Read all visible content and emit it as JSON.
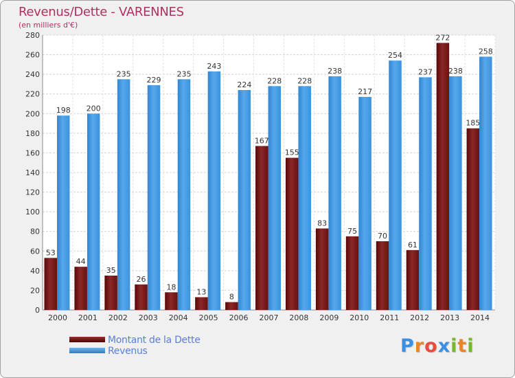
{
  "chart_data": {
    "type": "bar",
    "title": "Revenus/Dette - VARENNES",
    "subtitle": "(en milliers d'€)",
    "xlabel": "",
    "ylabel": "",
    "ylim": [
      0,
      280
    ],
    "yticks": [
      "0",
      "20",
      "40",
      "60",
      "80",
      "100",
      "120",
      "140",
      "160",
      "180",
      "200",
      "220",
      "240",
      "260",
      "280"
    ],
    "grid": true,
    "legend_position": "bottom-left",
    "categories": [
      "2000",
      "2001",
      "2002",
      "2003",
      "2004",
      "2005",
      "2006",
      "2007",
      "2008",
      "2009",
      "2010",
      "2011",
      "2012",
      "2013",
      "2014"
    ],
    "series": [
      {
        "name": "Montant de la Dette",
        "color": "#7a1a1a",
        "values": [
          53,
          44,
          35,
          26,
          18,
          13,
          8,
          167,
          155,
          83,
          75,
          70,
          61,
          272,
          185
        ]
      },
      {
        "name": "Revenus",
        "color": "#3f96e0",
        "values": [
          198,
          200,
          235,
          229,
          235,
          243,
          224,
          228,
          228,
          238,
          217,
          254,
          237,
          238,
          258
        ]
      }
    ]
  },
  "logo": {
    "text": "Proxiti",
    "letters": [
      "P",
      "r",
      "o",
      "x",
      "i",
      "t",
      "i"
    ],
    "colors": [
      "#3a8fe0",
      "#e8862a",
      "#e84c3c",
      "#3a8fe0",
      "#76b82a",
      "#e8862a",
      "#76b82a"
    ]
  }
}
